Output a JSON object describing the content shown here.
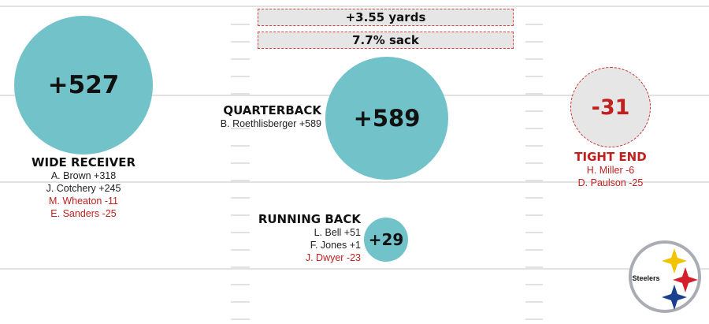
{
  "stats": {
    "yards": "+3.55 yards",
    "sack": "7.7% sack"
  },
  "positions": {
    "wide_receiver": {
      "value": "+527",
      "title": "WIDE RECEIVER",
      "players": [
        {
          "text": "A. Brown +318",
          "negative": false
        },
        {
          "text": "J. Cotchery +245",
          "negative": false
        },
        {
          "text": "M. Wheaton -11",
          "negative": true
        },
        {
          "text": "E. Sanders -25",
          "negative": true
        }
      ]
    },
    "quarterback": {
      "value": "+589",
      "title": "QUARTERBACK",
      "players": [
        {
          "text": "B. Roethlisberger +589",
          "negative": false
        }
      ]
    },
    "tight_end": {
      "value": "-31",
      "title": "TIGHT END",
      "players": [
        {
          "text": "H. Miller -6",
          "negative": true
        },
        {
          "text": "D. Paulson -25",
          "negative": true
        }
      ]
    },
    "running_back": {
      "value": "+29",
      "title": "RUNNING BACK",
      "players": [
        {
          "text": "L. Bell +51",
          "negative": false
        },
        {
          "text": "F. Jones +1",
          "negative": false
        },
        {
          "text": "J. Dwyer -23",
          "negative": true
        }
      ]
    }
  },
  "logo": {
    "text": "Steelers",
    "icon": "steelers-logo-icon"
  },
  "colors": {
    "positive_bubble": "#72c2c9",
    "negative_text": "#c21f1f",
    "negative_bubble": "#e6e6e6"
  }
}
